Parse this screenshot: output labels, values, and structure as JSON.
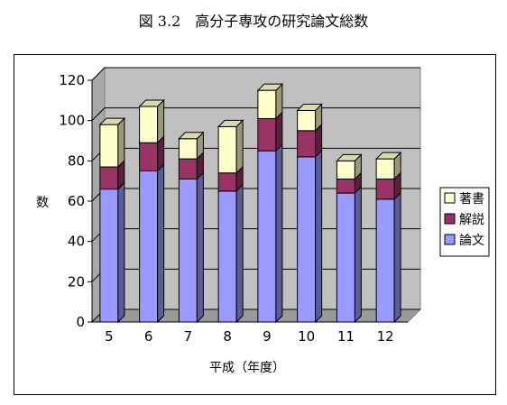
{
  "figure_title": "図 3.2　高分子専攻の研究論文総数",
  "chart_data": {
    "type": "bar",
    "stacked": true,
    "three_d": true,
    "categories": [
      "5",
      "6",
      "7",
      "8",
      "9",
      "10",
      "11",
      "12"
    ],
    "series": [
      {
        "name": "論文",
        "color": "#9999ff",
        "values": [
          66,
          75,
          71,
          65,
          85,
          82,
          64,
          61
        ]
      },
      {
        "name": "解説",
        "color": "#993366",
        "values": [
          11,
          14,
          10,
          9,
          16,
          13,
          7,
          10
        ]
      },
      {
        "name": "著書",
        "color": "#ffffcc",
        "values": [
          21,
          18,
          10,
          23,
          14,
          10,
          9,
          10
        ]
      }
    ],
    "xlabel": "平成（年度）",
    "ylabel": "数",
    "ylim": [
      0,
      120
    ],
    "yticks": [
      0,
      20,
      40,
      60,
      80,
      100,
      120
    ],
    "grid": true,
    "legend_position": "right",
    "legend_order": [
      "著書",
      "解説",
      "論文"
    ],
    "wall_color": "#c0c0c0"
  }
}
